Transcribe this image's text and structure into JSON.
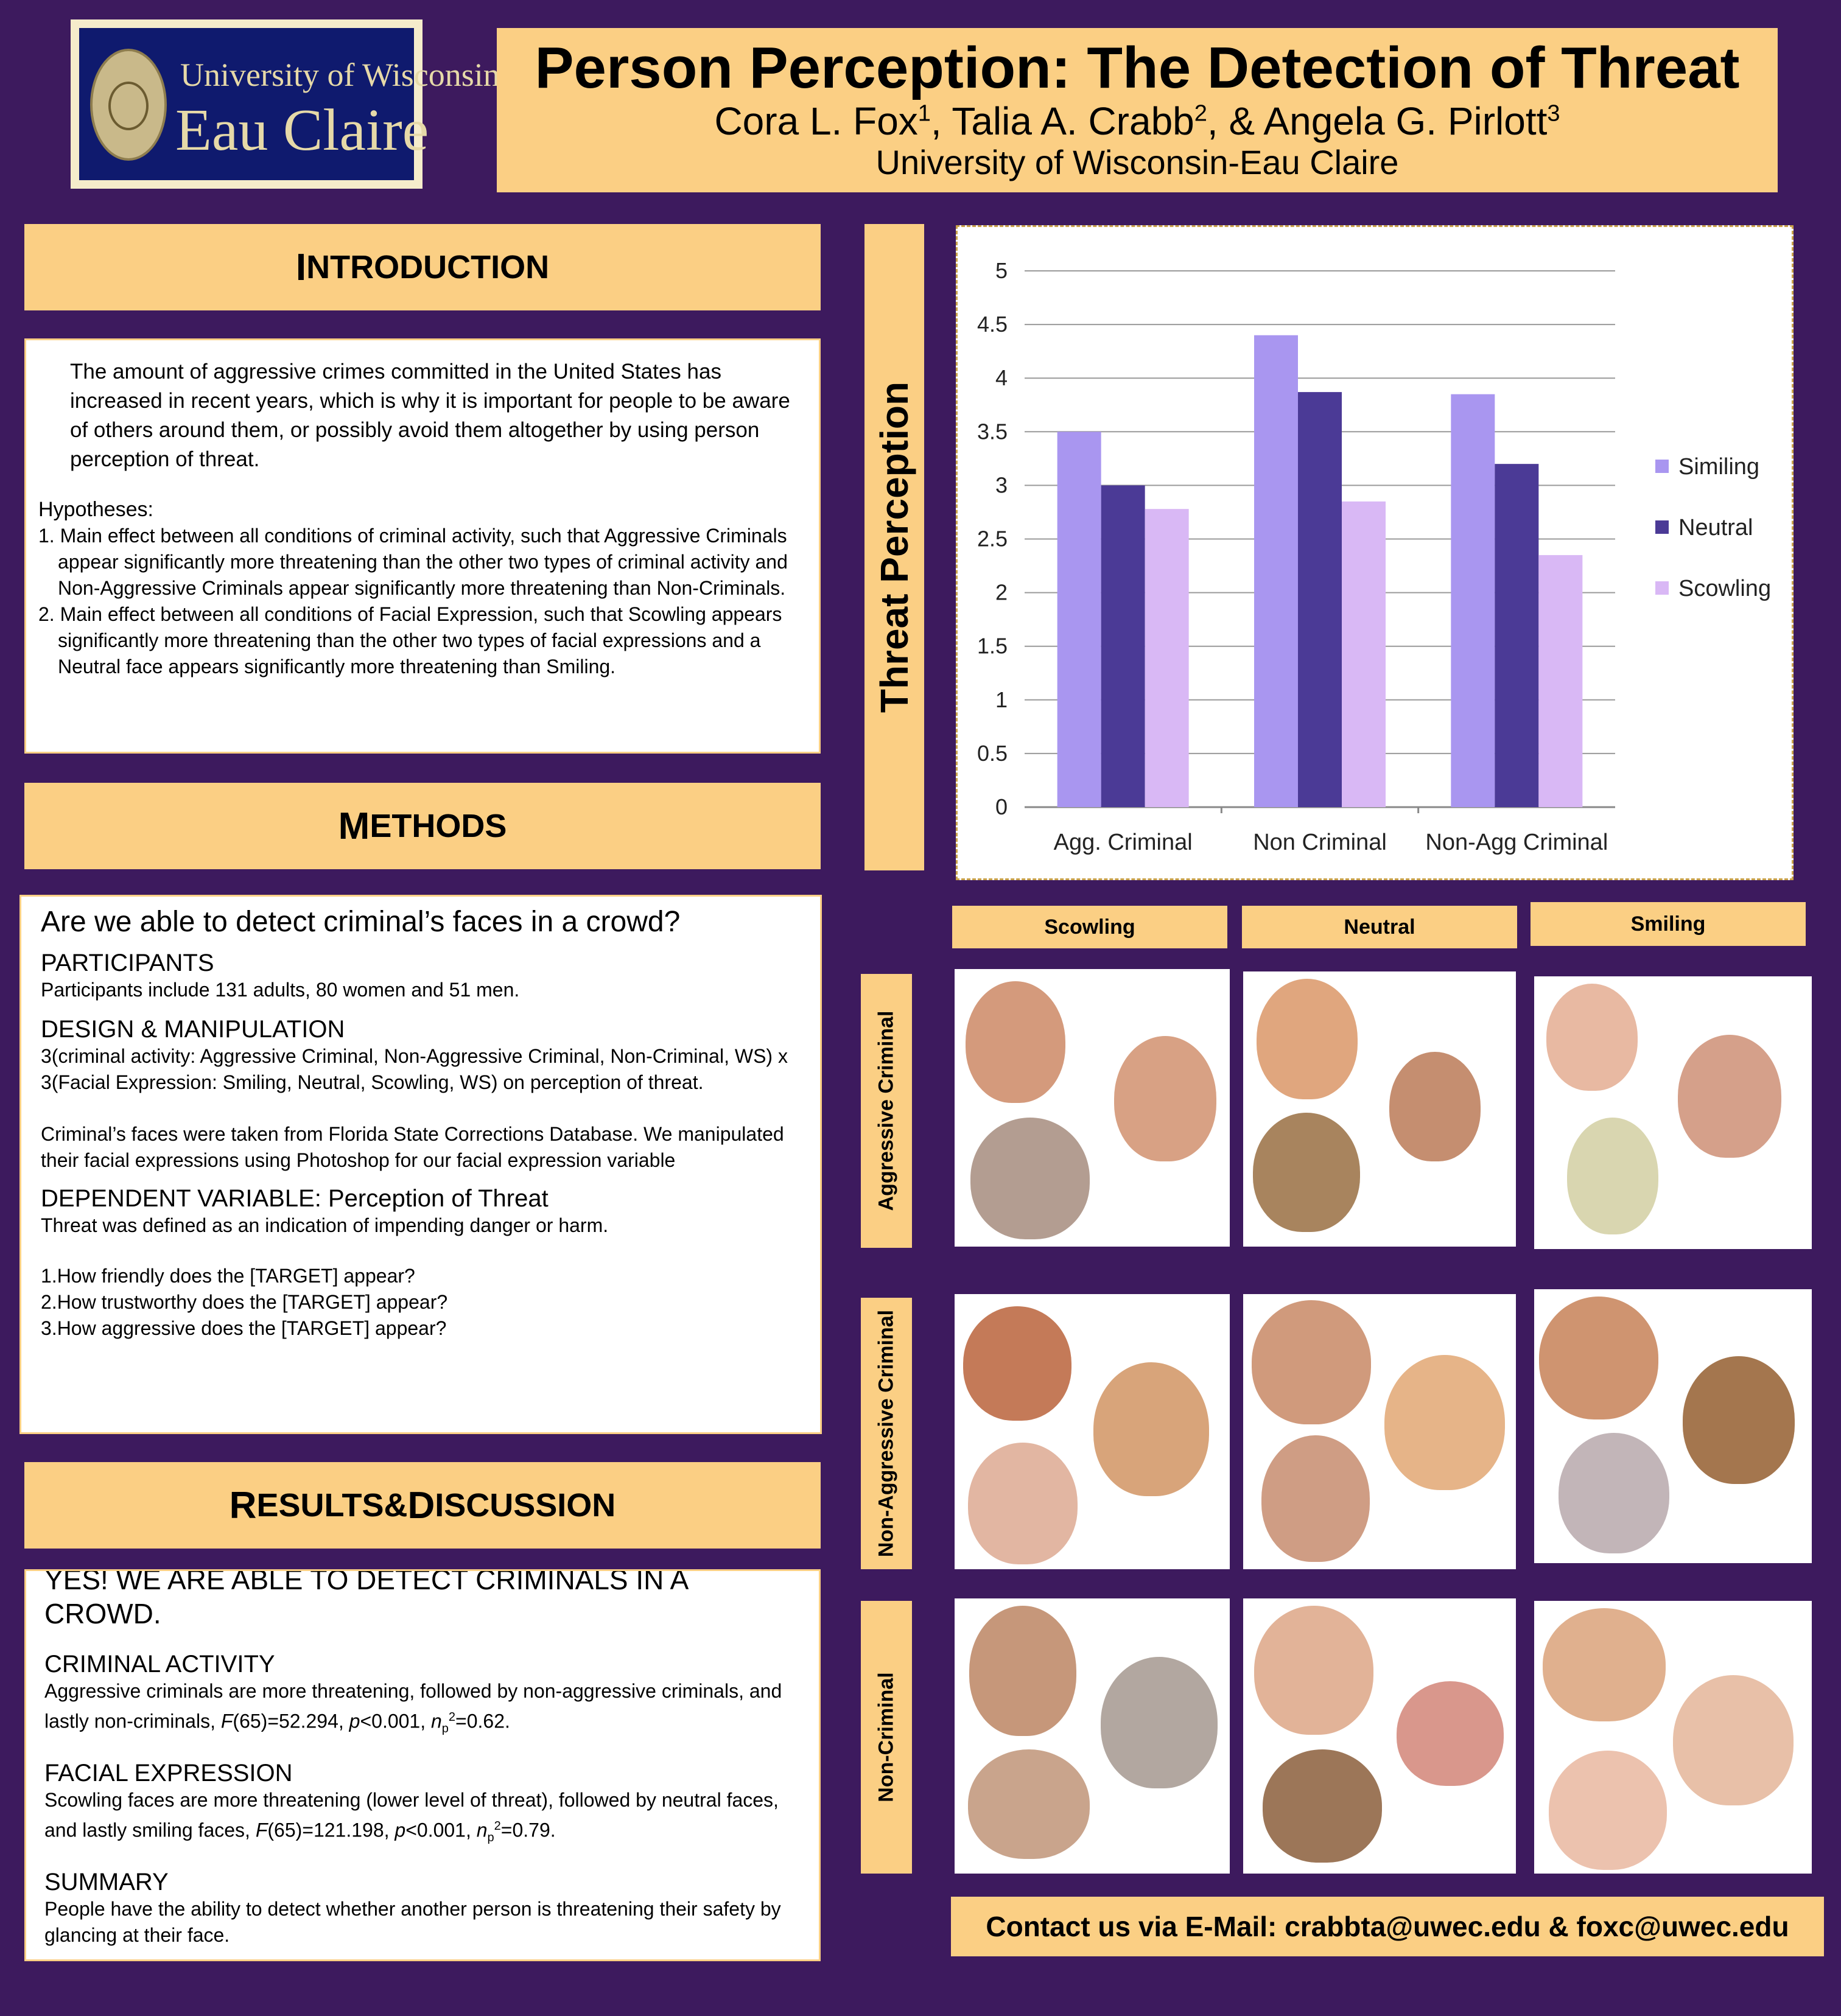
{
  "logo": {
    "line1": "University of Wisconsin",
    "line2": "Eau Claire"
  },
  "header": {
    "title": "Person Perception: The Detection of Threat",
    "authors": [
      {
        "name": "Cora L. Fox",
        "sup": "1"
      },
      {
        "name": "Talia A. Crabb",
        "sup": "2"
      },
      {
        "name": "Angela G. Pirlott",
        "sup": "3"
      }
    ],
    "sep1": ", ",
    "sep2": ", & ",
    "affiliation": "University of Wisconsin-Eau Claire"
  },
  "introduction": {
    "heading_first": "I",
    "heading_rest": "NTRODUCTION",
    "paragraph": "The amount of aggressive crimes committed in the United States has increased in recent years, which is why it is important for people to be aware of others around them, or possibly avoid them altogether by using person perception of threat.",
    "hyp_label": "Hypotheses:",
    "hyp1": "1. Main effect between all conditions of criminal activity, such that Aggressive Criminals appear significantly more threatening than the other two types of criminal activity and Non-Aggressive Criminals appear significantly more threatening than Non-Criminals.",
    "hyp2": "2. Main effect between all conditions of Facial Expression, such that Scowling appears significantly more threatening than the other two types of facial expressions and a Neutral face appears significantly more threatening than Smiling."
  },
  "methods": {
    "heading_first": "M",
    "heading_rest": "ETHODS",
    "question": "Are we able to detect criminal’s faces in a crowd?",
    "participants_head": "PARTICIPANTS",
    "participants": "Participants include 131 adults, 80 women and 51 men.",
    "design_head": "DESIGN & MANIPULATION",
    "design": "3(criminal activity: Aggressive Criminal, Non-Aggressive Criminal, Non-Criminal, WS) x 3(Facial Expression: Smiling, Neutral, Scowling, WS) on perception of threat.",
    "faces_source": "Criminal’s faces were taken from Florida State Corrections Database.  We manipulated their facial expressions using Photoshop for our facial expression variable",
    "dv_head": "DEPENDENT VARIABLE: Perception of Threat",
    "dv_def": "Threat was defined as an indication of impending danger or harm.",
    "q1": "1.How friendly does the [TARGET] appear?",
    "q2": "2.How trustworthy does the [TARGET] appear?",
    "q3": "3.How aggressive does the [TARGET] appear?"
  },
  "results": {
    "heading_a_first": "R",
    "heading_a_rest": "ESULTS",
    "heading_amp": " & ",
    "heading_b_first": "D",
    "heading_b_rest": "ISCUSSION",
    "lead": "YES! WE ARE ABLE TO DETECT CRIMINALS IN A CROWD.",
    "ca_head": "CRIMINAL ACTIVITY",
    "ca_text": "Aggressive criminals are more threatening, followed by non-aggressive criminals, and lastly non-criminals, ",
    "ca_stats": {
      "F": "F",
      "fval": "(65)=52.294, ",
      "p": "p",
      "pval": "<0.001, ",
      "n": "n",
      "sub": "p",
      "sup": "2",
      "eta": "=0.62."
    },
    "fe_head": "FACIAL EXPRESSION",
    "fe_text": "Scowling faces are more threatening (lower level of threat), followed by neutral faces, and lastly smiling faces, ",
    "fe_stats": {
      "F": "F",
      "fval": "(65)=121.198, ",
      "p": "p",
      "pval": "<0.001, ",
      "n": "n",
      "sub": "p",
      "sup": "2",
      "eta": "=0.79."
    },
    "summary_head": "SUMMARY",
    "summary": "People have the ability to detect whether another person is threatening their safety by glancing at their face."
  },
  "threat_label": "Threat Perception",
  "chart_data": {
    "type": "bar",
    "categories": [
      "Agg. Criminal",
      "Non Criminal",
      "Non-Agg Criminal"
    ],
    "series": [
      {
        "name": "Similing",
        "values": [
          3.5,
          4.4,
          3.85
        ],
        "color": "#a996f0"
      },
      {
        "name": "Neutral",
        "values": [
          3.0,
          3.87,
          3.2
        ],
        "color": "#4b3a96"
      },
      {
        "name": "Scowling",
        "values": [
          2.78,
          2.85,
          2.35
        ],
        "color": "#d9b8f5"
      }
    ],
    "ylim": [
      0,
      5
    ],
    "yticks": [
      "0",
      "0.5",
      "1",
      "1.5",
      "2",
      "2.5",
      "3",
      "3.5",
      "4",
      "4.5",
      "5"
    ],
    "grid": true,
    "legend": "right"
  },
  "grid": {
    "columns": [
      "Scowling",
      "Neutral",
      "Smiling"
    ],
    "rows": [
      "Aggressive Criminal",
      "Non-Aggressive Criminal",
      "Non-Criminal"
    ]
  },
  "contact": "Contact us via E-Mail: crabbta@uwec.edu & foxc@uwec.edu"
}
